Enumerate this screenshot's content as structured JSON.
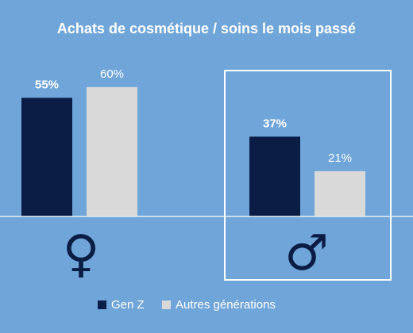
{
  "chart_data": {
    "type": "bar",
    "title": "Achats de cosmétique / soins le mois passé",
    "categories": [
      "♀",
      "♂"
    ],
    "series": [
      {
        "name": "Gen Z",
        "values": [
          55,
          37
        ],
        "labels": [
          "55%",
          "37%"
        ]
      },
      {
        "name": "Autres générations",
        "values": [
          60,
          21
        ],
        "labels": [
          "60%",
          "21%"
        ]
      }
    ],
    "ylim": [
      0,
      100
    ],
    "grid": false,
    "highlighted_category": "♂",
    "legend_position": "bottom"
  },
  "colors": {
    "background": "#6fa5d8",
    "gen_z": "#0b1c45",
    "autres": "#d9d9d9",
    "axis": "#e8eef6",
    "text": "#ffffff",
    "symbol": "#0b1c45"
  }
}
